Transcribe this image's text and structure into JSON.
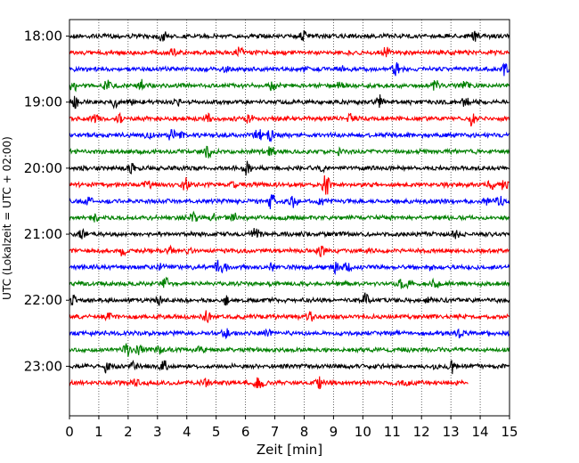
{
  "chart_data": {
    "type": "line",
    "title": "",
    "xlabel": "Zeit  [min]",
    "ylabel": "UTC (Lokalzeit = UTC + 02:00)",
    "xlim": [
      0,
      15
    ],
    "x_ticks": [
      "0",
      "1",
      "2",
      "3",
      "4",
      "5",
      "6",
      "7",
      "8",
      "9",
      "10",
      "11",
      "12",
      "13",
      "14",
      "15"
    ],
    "y_ticks": [
      "18:00",
      "19:00",
      "20:00",
      "21:00",
      "22:00",
      "23:00"
    ],
    "y_axis_top": "17:45",
    "y_axis_bottom": "23:45",
    "row_interval_minutes": 15,
    "grid": "vertical dotted lines at each minute",
    "colors": [
      "#000000",
      "#ff0000",
      "#0000ff",
      "#008000"
    ],
    "series": [
      {
        "start": "18:00",
        "x_end": 15,
        "color": "#000000"
      },
      {
        "start": "18:15",
        "x_end": 15,
        "color": "#ff0000"
      },
      {
        "start": "18:30",
        "x_end": 15,
        "color": "#0000ff"
      },
      {
        "start": "18:45",
        "x_end": 15,
        "color": "#008000"
      },
      {
        "start": "19:00",
        "x_end": 15,
        "color": "#000000"
      },
      {
        "start": "19:15",
        "x_end": 15,
        "color": "#ff0000"
      },
      {
        "start": "19:30",
        "x_end": 15,
        "color": "#0000ff"
      },
      {
        "start": "19:45",
        "x_end": 15,
        "color": "#008000"
      },
      {
        "start": "20:00",
        "x_end": 15,
        "color": "#000000"
      },
      {
        "start": "20:15",
        "x_end": 15,
        "color": "#ff0000"
      },
      {
        "start": "20:30",
        "x_end": 15,
        "color": "#0000ff"
      },
      {
        "start": "20:45",
        "x_end": 15,
        "color": "#008000"
      },
      {
        "start": "21:00",
        "x_end": 15,
        "color": "#000000"
      },
      {
        "start": "21:15",
        "x_end": 15,
        "color": "#ff0000"
      },
      {
        "start": "21:30",
        "x_end": 15,
        "color": "#0000ff"
      },
      {
        "start": "21:45",
        "x_end": 15,
        "color": "#008000"
      },
      {
        "start": "22:00",
        "x_end": 15,
        "color": "#000000"
      },
      {
        "start": "22:15",
        "x_end": 15,
        "color": "#ff0000"
      },
      {
        "start": "22:30",
        "x_end": 15,
        "color": "#0000ff"
      },
      {
        "start": "22:45",
        "x_end": 15,
        "color": "#008000"
      },
      {
        "start": "23:00",
        "x_end": 15,
        "color": "#000000"
      },
      {
        "start": "23:15",
        "x_end": 13.6,
        "color": "#ff0000"
      }
    ]
  }
}
